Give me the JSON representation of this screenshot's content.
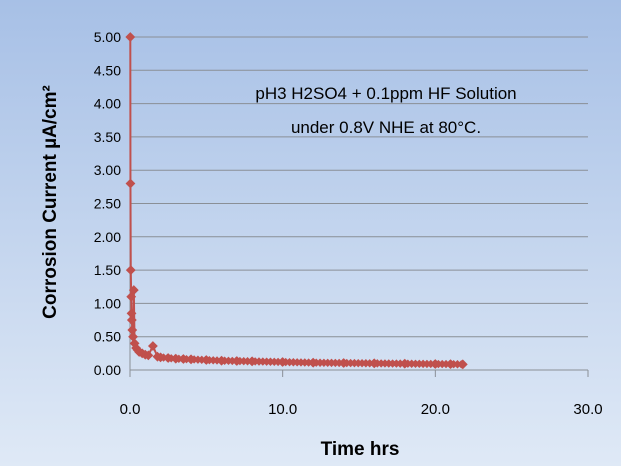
{
  "chart_data": {
    "type": "scatter",
    "title_lines": [
      "pH3 H2SO4 + 0.1ppm HF Solution",
      "under 0.8V NHE at 80°C."
    ],
    "xlabel": "Time hrs",
    "ylabel": "Corrosion Current µA/cm²",
    "xlim": [
      0,
      30
    ],
    "ylim": [
      0,
      5
    ],
    "x_ticks": [
      "0.0",
      "10.0",
      "20.0",
      "30.0"
    ],
    "y_ticks": [
      "0.00",
      "0.50",
      "1.00",
      "1.50",
      "2.00",
      "2.50",
      "3.00",
      "3.50",
      "4.00",
      "4.50",
      "5.00"
    ],
    "grid": "horizontal",
    "series": [
      {
        "color": "#c0504d",
        "x": [
          0.02,
          0.03,
          0.05,
          0.08,
          0.1,
          0.12,
          0.15,
          0.2,
          0.25,
          0.3,
          0.4,
          0.5,
          0.6,
          0.8,
          1.0,
          1.2,
          1.5,
          1.8,
          2.0,
          2.5,
          3.0,
          3.5,
          4.0,
          5.0,
          6.0,
          7.0,
          8.0,
          10.0,
          12.0,
          14.0,
          16.0,
          18.0,
          20.0,
          21.0,
          21.8
        ],
        "y": [
          5.0,
          2.8,
          1.5,
          1.1,
          0.85,
          0.75,
          0.6,
          0.5,
          1.2,
          0.4,
          0.33,
          0.3,
          0.27,
          0.25,
          0.23,
          0.22,
          0.36,
          0.2,
          0.19,
          0.18,
          0.17,
          0.165,
          0.16,
          0.15,
          0.14,
          0.135,
          0.13,
          0.12,
          0.11,
          0.105,
          0.1,
          0.095,
          0.09,
          0.088,
          0.085
        ]
      }
    ],
    "background": "#aec4e6",
    "plot_background": "#c7d8f0"
  }
}
